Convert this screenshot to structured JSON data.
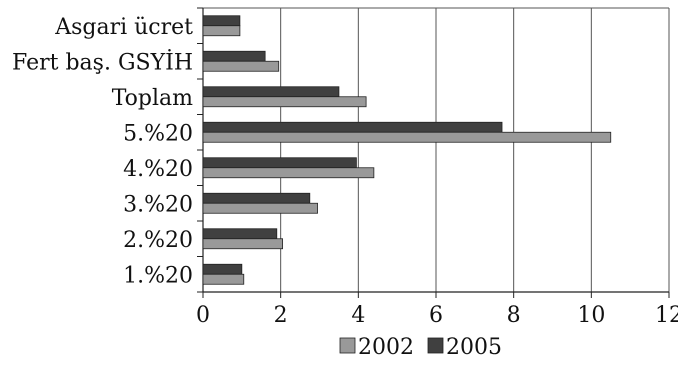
{
  "chart_data": {
    "type": "bar",
    "orientation": "horizontal",
    "categories": [
      "Asgari ücret",
      "Fert baş. GSYİH",
      "Toplam",
      "5.%20",
      "4.%20",
      "3.%20",
      "2.%20",
      "1.%20"
    ],
    "series": [
      {
        "name": "2005",
        "values": [
          0.95,
          1.6,
          3.5,
          7.7,
          3.95,
          2.75,
          1.9,
          1.0
        ],
        "color": "#404040"
      },
      {
        "name": "2002",
        "values": [
          0.95,
          1.95,
          4.2,
          10.5,
          4.4,
          2.95,
          2.05,
          1.05
        ],
        "color": "#999999"
      }
    ],
    "xlim": [
      0,
      12
    ],
    "xticks": [
      0,
      2,
      4,
      6,
      8,
      10,
      12
    ],
    "grid": "vertical",
    "legend": {
      "placement": "bottom-center",
      "entries": [
        {
          "name": "2002",
          "color": "#999999"
        },
        {
          "name": "2005",
          "color": "#404040"
        }
      ]
    }
  }
}
